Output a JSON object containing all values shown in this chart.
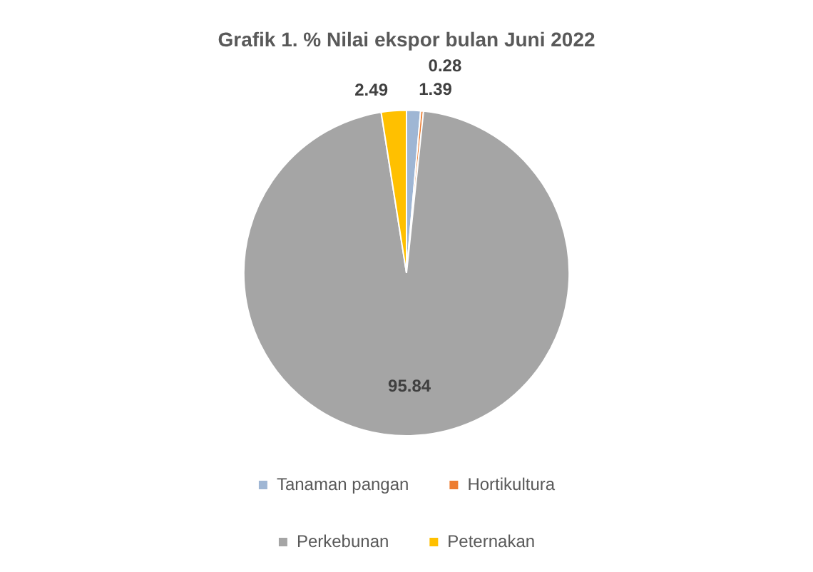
{
  "chart_data": {
    "type": "pie",
    "title": "Grafik 1. % Nilai ekspor bulan Juni 2022",
    "categories": [
      "Tanaman pangan",
      "Hortikultura",
      "Perkebunan",
      "Peternakan"
    ],
    "values": [
      1.39,
      0.28,
      95.84,
      2.49
    ],
    "colors": [
      "#9fb6d4",
      "#ed7d31",
      "#a5a5a5",
      "#ffc000"
    ],
    "data_labels": true,
    "legend": "bottom"
  }
}
